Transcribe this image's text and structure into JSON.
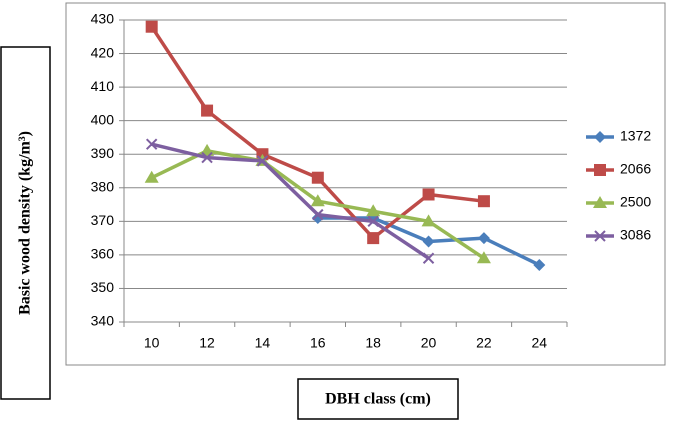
{
  "chart_data": {
    "type": "line",
    "x_label": "DBH class (cm)",
    "y_label": "Basic wood density (kg/m³)",
    "categories": [
      "10",
      "12",
      "14",
      "16",
      "18",
      "20",
      "22",
      "24"
    ],
    "series": [
      {
        "name": "1372",
        "color": "#4a7ebb",
        "marker": "diamond",
        "values": [
          null,
          null,
          null,
          371,
          371,
          364,
          365,
          357
        ]
      },
      {
        "name": "2066",
        "color": "#be4b48",
        "marker": "square",
        "values": [
          428,
          403,
          390,
          383,
          365,
          378,
          376,
          null
        ]
      },
      {
        "name": "2500",
        "color": "#98b954",
        "marker": "triangle",
        "values": [
          383,
          391,
          388,
          376,
          373,
          370,
          359,
          null
        ]
      },
      {
        "name": "3086",
        "color": "#7d5fa0",
        "marker": "x",
        "values": [
          393,
          389,
          388,
          372,
          370,
          359,
          null,
          null
        ]
      }
    ],
    "ylim": [
      340,
      430
    ],
    "yticks": [
      340,
      350,
      360,
      370,
      380,
      390,
      400,
      410,
      420,
      430
    ],
    "grid": true,
    "legend": "right"
  }
}
